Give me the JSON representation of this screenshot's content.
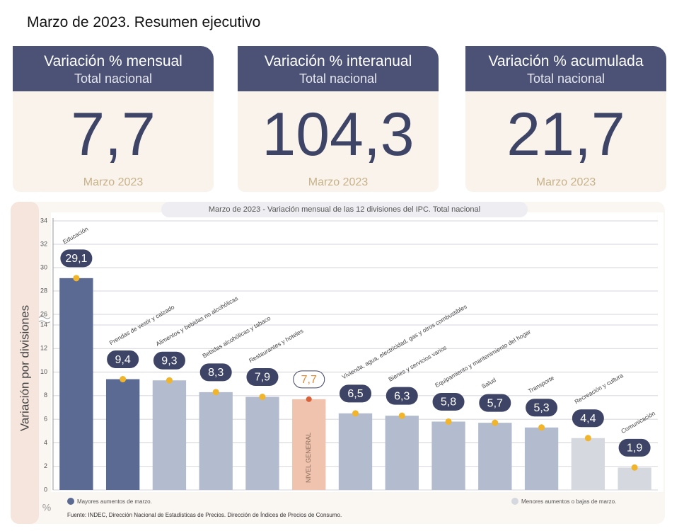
{
  "title": "Marzo de 2023. Resumen ejecutivo",
  "cards": [
    {
      "title": "Variación % mensual",
      "subtitle": "Total nacional",
      "value": "7,7",
      "date": "Marzo 2023"
    },
    {
      "title": "Variación % interanual",
      "subtitle": "Total nacional",
      "value": "104,3",
      "date": "Marzo 2023"
    },
    {
      "title": "Variación % acumulada",
      "subtitle": "Total nacional",
      "value": "21,7",
      "date": "Marzo 2023"
    }
  ],
  "chart_data": {
    "type": "bar",
    "title": "Marzo de 2023 - Variación mensual de las 12 divisiones del IPC. Total nacional",
    "y_label": "Variación por divisiones",
    "y_unit": "%",
    "source": "Fuente: INDEC, Dirección Nacional de Estadísticas de Precios. Dirección de Índices de Precios de Consumo.",
    "categories": [
      "Educación",
      "Prendas de vestir y calzado",
      "Alimentos y bebidas no alcohólicas",
      "Bebidas alcohólicas y tabaco",
      "Restaurantes y hoteles",
      "NIVEL GENERAL",
      "Vivienda, agua, electricidad, gas y otros combustibles",
      "Bienes y servicios varios",
      "Equipamiento y mantenimiento del hogar",
      "Salud",
      "Transporte",
      "Recreación y cultura",
      "Comunicación"
    ],
    "values": [
      29.1,
      9.4,
      9.3,
      8.3,
      7.9,
      7.7,
      6.5,
      6.3,
      5.8,
      5.7,
      5.3,
      4.4,
      1.9
    ],
    "value_labels": [
      "29,1",
      "9,4",
      "9,3",
      "8,3",
      "7,9",
      "7,7",
      "6,5",
      "6,3",
      "5,8",
      "5,7",
      "5,3",
      "4,4",
      "1,9"
    ],
    "colors": [
      "#5b6a93",
      "#5b6a93",
      "#b3bbcf",
      "#b3bbcf",
      "#b3bbcf",
      "#efc3ad",
      "#b3bbcf",
      "#b3bbcf",
      "#b3bbcf",
      "#b3bbcf",
      "#b3bbcf",
      "#d5d8df",
      "#d5d8df"
    ],
    "ylim": [
      0,
      34
    ],
    "yticks": [
      0,
      2,
      4,
      6,
      8,
      10,
      12,
      14,
      26,
      28,
      30,
      32,
      34
    ],
    "grid": true,
    "legend": [
      {
        "label": "Mayores aumentos de marzo.",
        "color": "#5b6a93"
      },
      {
        "label": "Menores aumentos o bajas de marzo.",
        "color": "#d5d8df"
      }
    ]
  }
}
